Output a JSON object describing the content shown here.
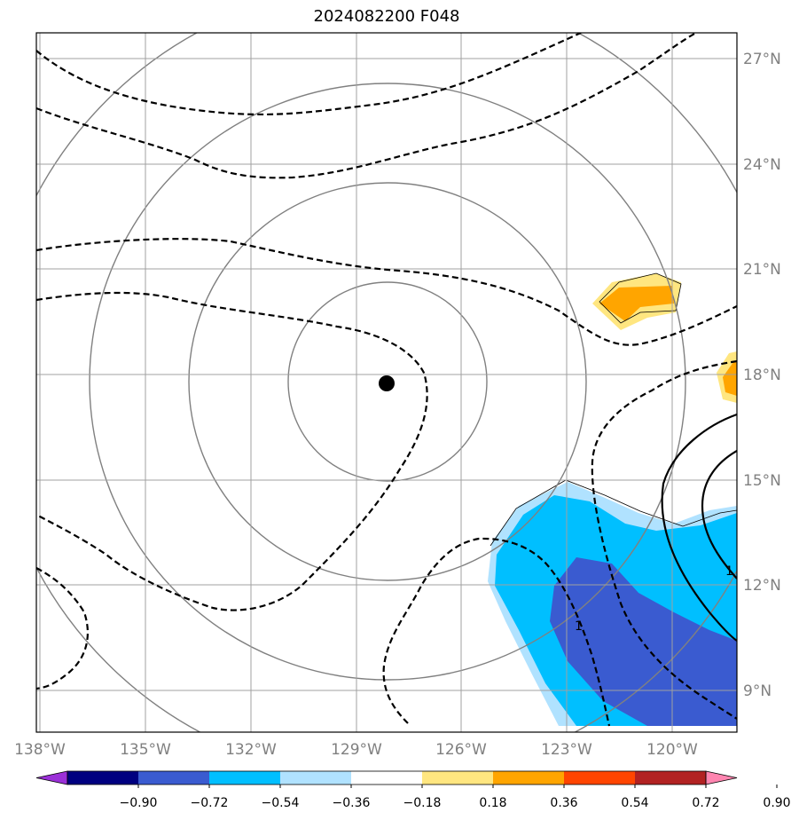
{
  "title": "2024082200 F048",
  "lon_labels": [
    "138°W",
    "135°W",
    "132°W",
    "129°W",
    "126°W",
    "123°W",
    "120°W"
  ],
  "lat_labels": [
    "27°N",
    "24°N",
    "21°N",
    "18°N",
    "15°N",
    "12°N",
    "9°N"
  ],
  "colorbar_labels": [
    "−0.90",
    "−0.72",
    "−0.54",
    "−0.36",
    "−0.18",
    "0.18",
    "0.36",
    "0.54",
    "0.72",
    "0.90"
  ],
  "colorbar_colors": [
    "#9b30d8",
    "#000080",
    "#3a5bd0",
    "#00bfff",
    "#b0e2ff",
    "#ffffff",
    "#ffe680",
    "#ffa500",
    "#ff4500",
    "#b22222",
    "#ff85b0"
  ],
  "contour_labels": [
    "1",
    "1"
  ],
  "colors": {
    "fill_light_blue": "#b0e2ff",
    "fill_blue": "#00bfff",
    "fill_dark_blue": "#3a5bd0",
    "fill_yellow": "#ffe680",
    "fill_orange": "#ffa500",
    "grid": "#a0a0a0",
    "range_rings": "#808080",
    "center_marker": "#000000"
  },
  "range_ring_count": 4,
  "center_marker_icon": "black-dot"
}
